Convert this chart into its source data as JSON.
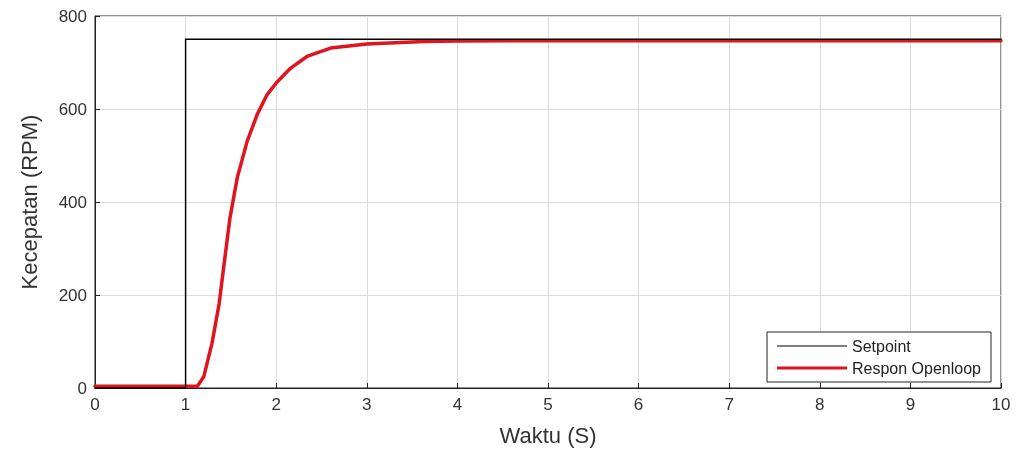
{
  "chart_data": {
    "type": "line",
    "xlabel": "Waktu (S)",
    "ylabel": "Kecepatan (RPM)",
    "xlim": [
      0,
      10
    ],
    "xticks": [
      0,
      1,
      2,
      3,
      4,
      5,
      6,
      7,
      8,
      9,
      10
    ],
    "ylim": [
      0,
      800
    ],
    "yticks": [
      0,
      200,
      400,
      600,
      800
    ],
    "grid": true,
    "legend": "bottom right",
    "marker": "none",
    "line_style": "solid",
    "series": [
      {
        "name": "Setpoint",
        "color": "#000000",
        "x": [
          0,
          1,
          1,
          10
        ],
        "values": [
          0,
          0,
          750,
          750
        ]
      },
      {
        "name": "Respon Openloop",
        "color": "#e0141e",
        "x": [
          0,
          1.13,
          1.2,
          1.29,
          1.37,
          1.42,
          1.49,
          1.57,
          1.68,
          1.79,
          1.9,
          2.0,
          2.16,
          2.34,
          2.6,
          3.0,
          3.63,
          4.0,
          5.0,
          6.0,
          7.0,
          8.0,
          9.0,
          10.0
        ],
        "values": [
          4,
          4,
          24,
          95,
          181,
          259,
          366,
          452,
          531,
          588,
          631,
          656,
          688,
          713,
          731,
          740,
          745,
          746,
          747,
          747,
          747,
          747,
          747,
          747
        ]
      }
    ]
  }
}
